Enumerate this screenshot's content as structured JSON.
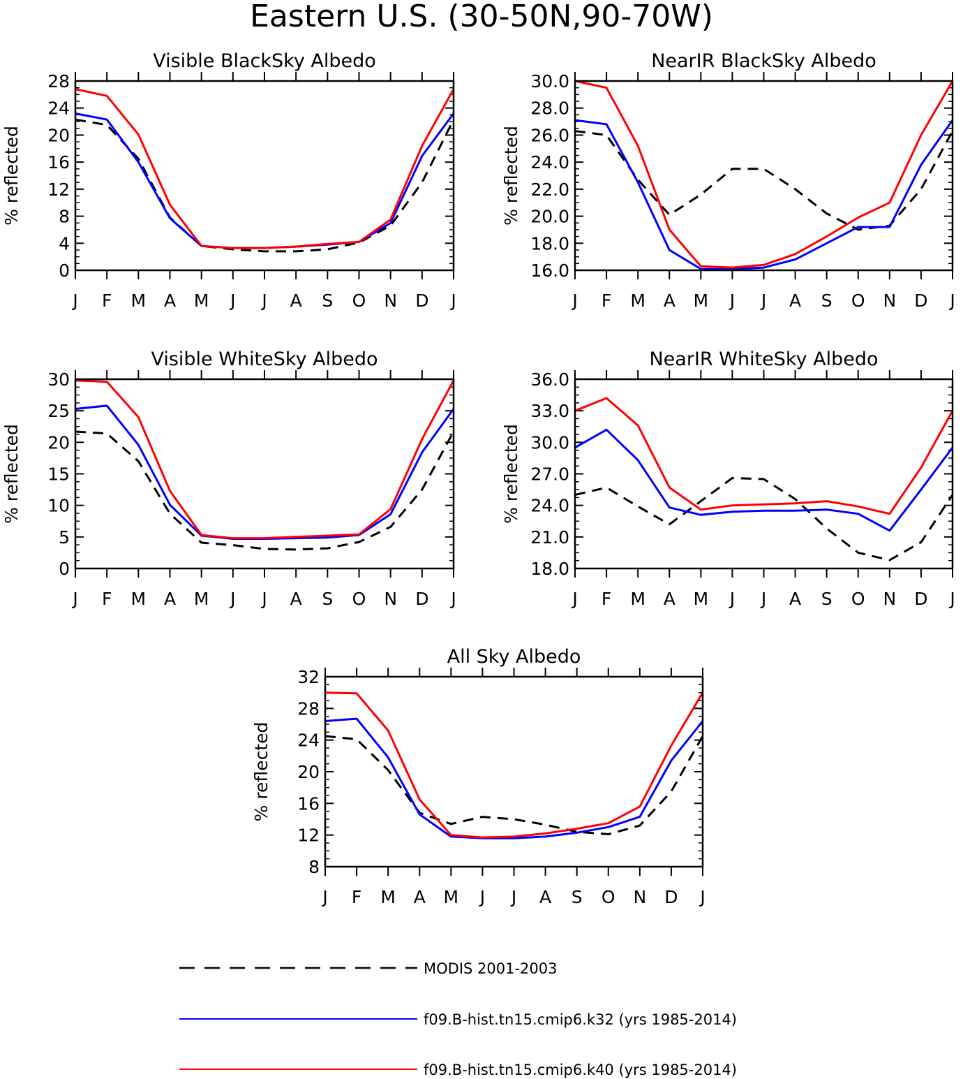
{
  "figure_title": "Eastern U.S. (30-50N,90-70W)",
  "colors": {
    "modis": "#000000",
    "k32": "#0000ff",
    "k40": "#ff0000"
  },
  "legend": [
    {
      "label": "MODIS 2001-2003",
      "style": "dashed",
      "color": "#000000"
    },
    {
      "label": "f09.B-hist.tn15.cmip6.k32 (yrs 1985-2014)",
      "style": "solid",
      "color": "#0000ff"
    },
    {
      "label": "f09.B-hist.tn15.cmip6.k40 (yrs 1985-2014)",
      "style": "solid",
      "color": "#ff0000"
    }
  ],
  "chart_data": [
    {
      "type": "line",
      "title": "Visible BlackSky Albedo",
      "ylabel": "% reflected",
      "categories": [
        "J",
        "F",
        "M",
        "A",
        "M",
        "J",
        "J",
        "A",
        "S",
        "O",
        "N",
        "D",
        "J"
      ],
      "ylim": [
        0,
        28
      ],
      "yticks": [
        "0",
        "4",
        "8",
        "12",
        "16",
        "20",
        "24",
        "28"
      ],
      "series": [
        {
          "name": "MODIS 2001-2003",
          "values": [
            22.3,
            21.5,
            16.5,
            7.8,
            3.6,
            3.1,
            2.8,
            2.8,
            3.1,
            4.1,
            6.6,
            13.0,
            22.3
          ]
        },
        {
          "name": "f09.B-hist.tn15.cmip6.k32 (yrs 1985-2014)",
          "values": [
            23.2,
            22.3,
            16.0,
            7.7,
            3.6,
            3.3,
            3.3,
            3.5,
            3.8,
            4.2,
            7.0,
            16.9,
            23.2
          ]
        },
        {
          "name": "f09.B-hist.tn15.cmip6.k40 (yrs 1985-2014)",
          "values": [
            26.8,
            25.8,
            20.1,
            9.7,
            3.6,
            3.3,
            3.3,
            3.5,
            3.9,
            4.2,
            7.5,
            18.4,
            26.8
          ]
        }
      ]
    },
    {
      "type": "line",
      "title": "NearIR BlackSky Albedo",
      "ylabel": "% reflected",
      "categories": [
        "J",
        "F",
        "M",
        "A",
        "M",
        "J",
        "J",
        "A",
        "S",
        "O",
        "N",
        "D",
        "J"
      ],
      "ylim": [
        16,
        30
      ],
      "yticks": [
        "16.0",
        "18.0",
        "20.0",
        "22.0",
        "24.0",
        "26.0",
        "28.0",
        "30.0"
      ],
      "series": [
        {
          "name": "MODIS 2001-2003",
          "values": [
            26.3,
            26.0,
            22.7,
            20.1,
            21.6,
            23.5,
            23.5,
            22.0,
            20.2,
            19.0,
            19.3,
            22.0,
            26.3
          ]
        },
        {
          "name": "f09.B-hist.tn15.cmip6.k32 (yrs 1985-2014)",
          "values": [
            27.1,
            26.8,
            22.5,
            17.5,
            16.1,
            16.1,
            16.2,
            16.8,
            18.0,
            19.2,
            19.2,
            23.8,
            27.1
          ]
        },
        {
          "name": "f09.B-hist.tn15.cmip6.k40 (yrs 1985-2014)",
          "values": [
            30.0,
            29.5,
            25.2,
            19.0,
            16.3,
            16.2,
            16.4,
            17.2,
            18.5,
            19.9,
            21.0,
            26.0,
            30.0
          ]
        }
      ]
    },
    {
      "type": "line",
      "title": "Visible WhiteSky Albedo",
      "ylabel": "% reflected",
      "categories": [
        "J",
        "F",
        "M",
        "A",
        "M",
        "J",
        "J",
        "A",
        "S",
        "O",
        "N",
        "D",
        "J"
      ],
      "ylim": [
        0,
        30
      ],
      "yticks": [
        "0",
        "5",
        "10",
        "15",
        "20",
        "25",
        "30"
      ],
      "series": [
        {
          "name": "MODIS 2001-2003",
          "values": [
            21.7,
            21.4,
            17.0,
            8.7,
            4.1,
            3.7,
            3.1,
            3.0,
            3.2,
            4.2,
            6.6,
            12.5,
            21.7
          ]
        },
        {
          "name": "f09.B-hist.tn15.cmip6.k32 (yrs 1985-2014)",
          "values": [
            25.3,
            25.8,
            19.6,
            10.1,
            5.2,
            4.7,
            4.7,
            4.8,
            4.9,
            5.3,
            8.6,
            18.4,
            25.3
          ]
        },
        {
          "name": "f09.B-hist.tn15.cmip6.k40 (yrs 1985-2014)",
          "values": [
            29.8,
            29.6,
            24.0,
            12.3,
            5.3,
            4.8,
            4.8,
            5.0,
            5.2,
            5.4,
            9.4,
            20.5,
            29.8
          ]
        }
      ]
    },
    {
      "type": "line",
      "title": "NearIR WhiteSky Albedo",
      "ylabel": "% reflected",
      "categories": [
        "J",
        "F",
        "M",
        "A",
        "M",
        "J",
        "J",
        "A",
        "S",
        "O",
        "N",
        "D",
        "J"
      ],
      "ylim": [
        18,
        36
      ],
      "yticks": [
        "18.0",
        "21.0",
        "24.0",
        "27.0",
        "30.0",
        "33.0",
        "36.0"
      ],
      "series": [
        {
          "name": "MODIS 2001-2003",
          "values": [
            25.0,
            25.7,
            23.9,
            22.2,
            24.4,
            26.6,
            26.5,
            24.6,
            21.8,
            19.5,
            18.8,
            20.5,
            25.0
          ]
        },
        {
          "name": "f09.B-hist.tn15.cmip6.k32 (yrs 1985-2014)",
          "values": [
            29.5,
            31.2,
            28.3,
            23.8,
            23.1,
            23.4,
            23.5,
            23.5,
            23.6,
            23.2,
            21.6,
            25.5,
            29.5
          ]
        },
        {
          "name": "f09.B-hist.tn15.cmip6.k40 (yrs 1985-2014)",
          "values": [
            33.0,
            34.2,
            31.6,
            25.7,
            23.6,
            24.0,
            24.1,
            24.2,
            24.4,
            23.9,
            23.2,
            27.6,
            33.0
          ]
        }
      ]
    },
    {
      "type": "line",
      "title": "All Sky Albedo",
      "ylabel": "% reflected",
      "categories": [
        "J",
        "F",
        "M",
        "A",
        "M",
        "J",
        "J",
        "A",
        "S",
        "O",
        "N",
        "D",
        "J"
      ],
      "ylim": [
        8,
        32
      ],
      "yticks": [
        "8",
        "12",
        "16",
        "20",
        "24",
        "28",
        "32"
      ],
      "series": [
        {
          "name": "MODIS 2001-2003",
          "values": [
            24.5,
            24.1,
            20.2,
            14.8,
            13.4,
            14.3,
            14.0,
            13.3,
            12.4,
            12.1,
            13.2,
            17.5,
            24.5
          ]
        },
        {
          "name": "f09.B-hist.tn15.cmip6.k32 (yrs 1985-2014)",
          "values": [
            26.4,
            26.7,
            21.8,
            14.6,
            11.8,
            11.6,
            11.6,
            11.8,
            12.3,
            13.0,
            14.3,
            21.4,
            26.4
          ]
        },
        {
          "name": "f09.B-hist.tn15.cmip6.k40 (yrs 1985-2014)",
          "values": [
            30.0,
            29.9,
            25.2,
            16.5,
            12.0,
            11.7,
            11.8,
            12.2,
            12.8,
            13.5,
            15.6,
            23.3,
            30.0
          ]
        }
      ]
    }
  ]
}
